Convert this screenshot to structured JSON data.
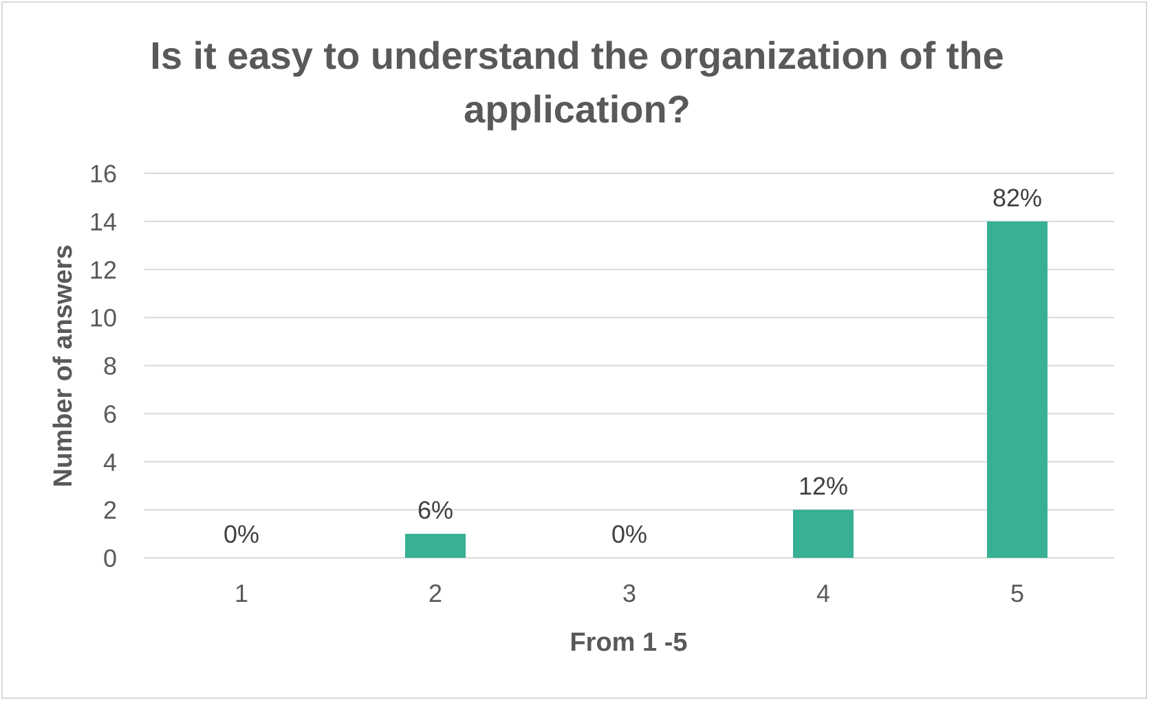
{
  "chart_data": {
    "type": "bar",
    "title": "Is it easy to understand the organization of the application?",
    "xlabel": "From 1 -5",
    "ylabel": "Number of answers",
    "categories": [
      "1",
      "2",
      "3",
      "4",
      "5"
    ],
    "values": [
      0,
      1,
      0,
      2,
      14
    ],
    "data_labels": [
      "0%",
      "6%",
      "0%",
      "12%",
      "82%"
    ],
    "ylim": [
      0,
      16
    ],
    "yticks": [
      0,
      2,
      4,
      6,
      8,
      10,
      12,
      14,
      16
    ],
    "grid": true,
    "legend": "none",
    "bar_color": "#37B094",
    "text_color": "#595959",
    "grid_color": "#d9d9d9"
  }
}
